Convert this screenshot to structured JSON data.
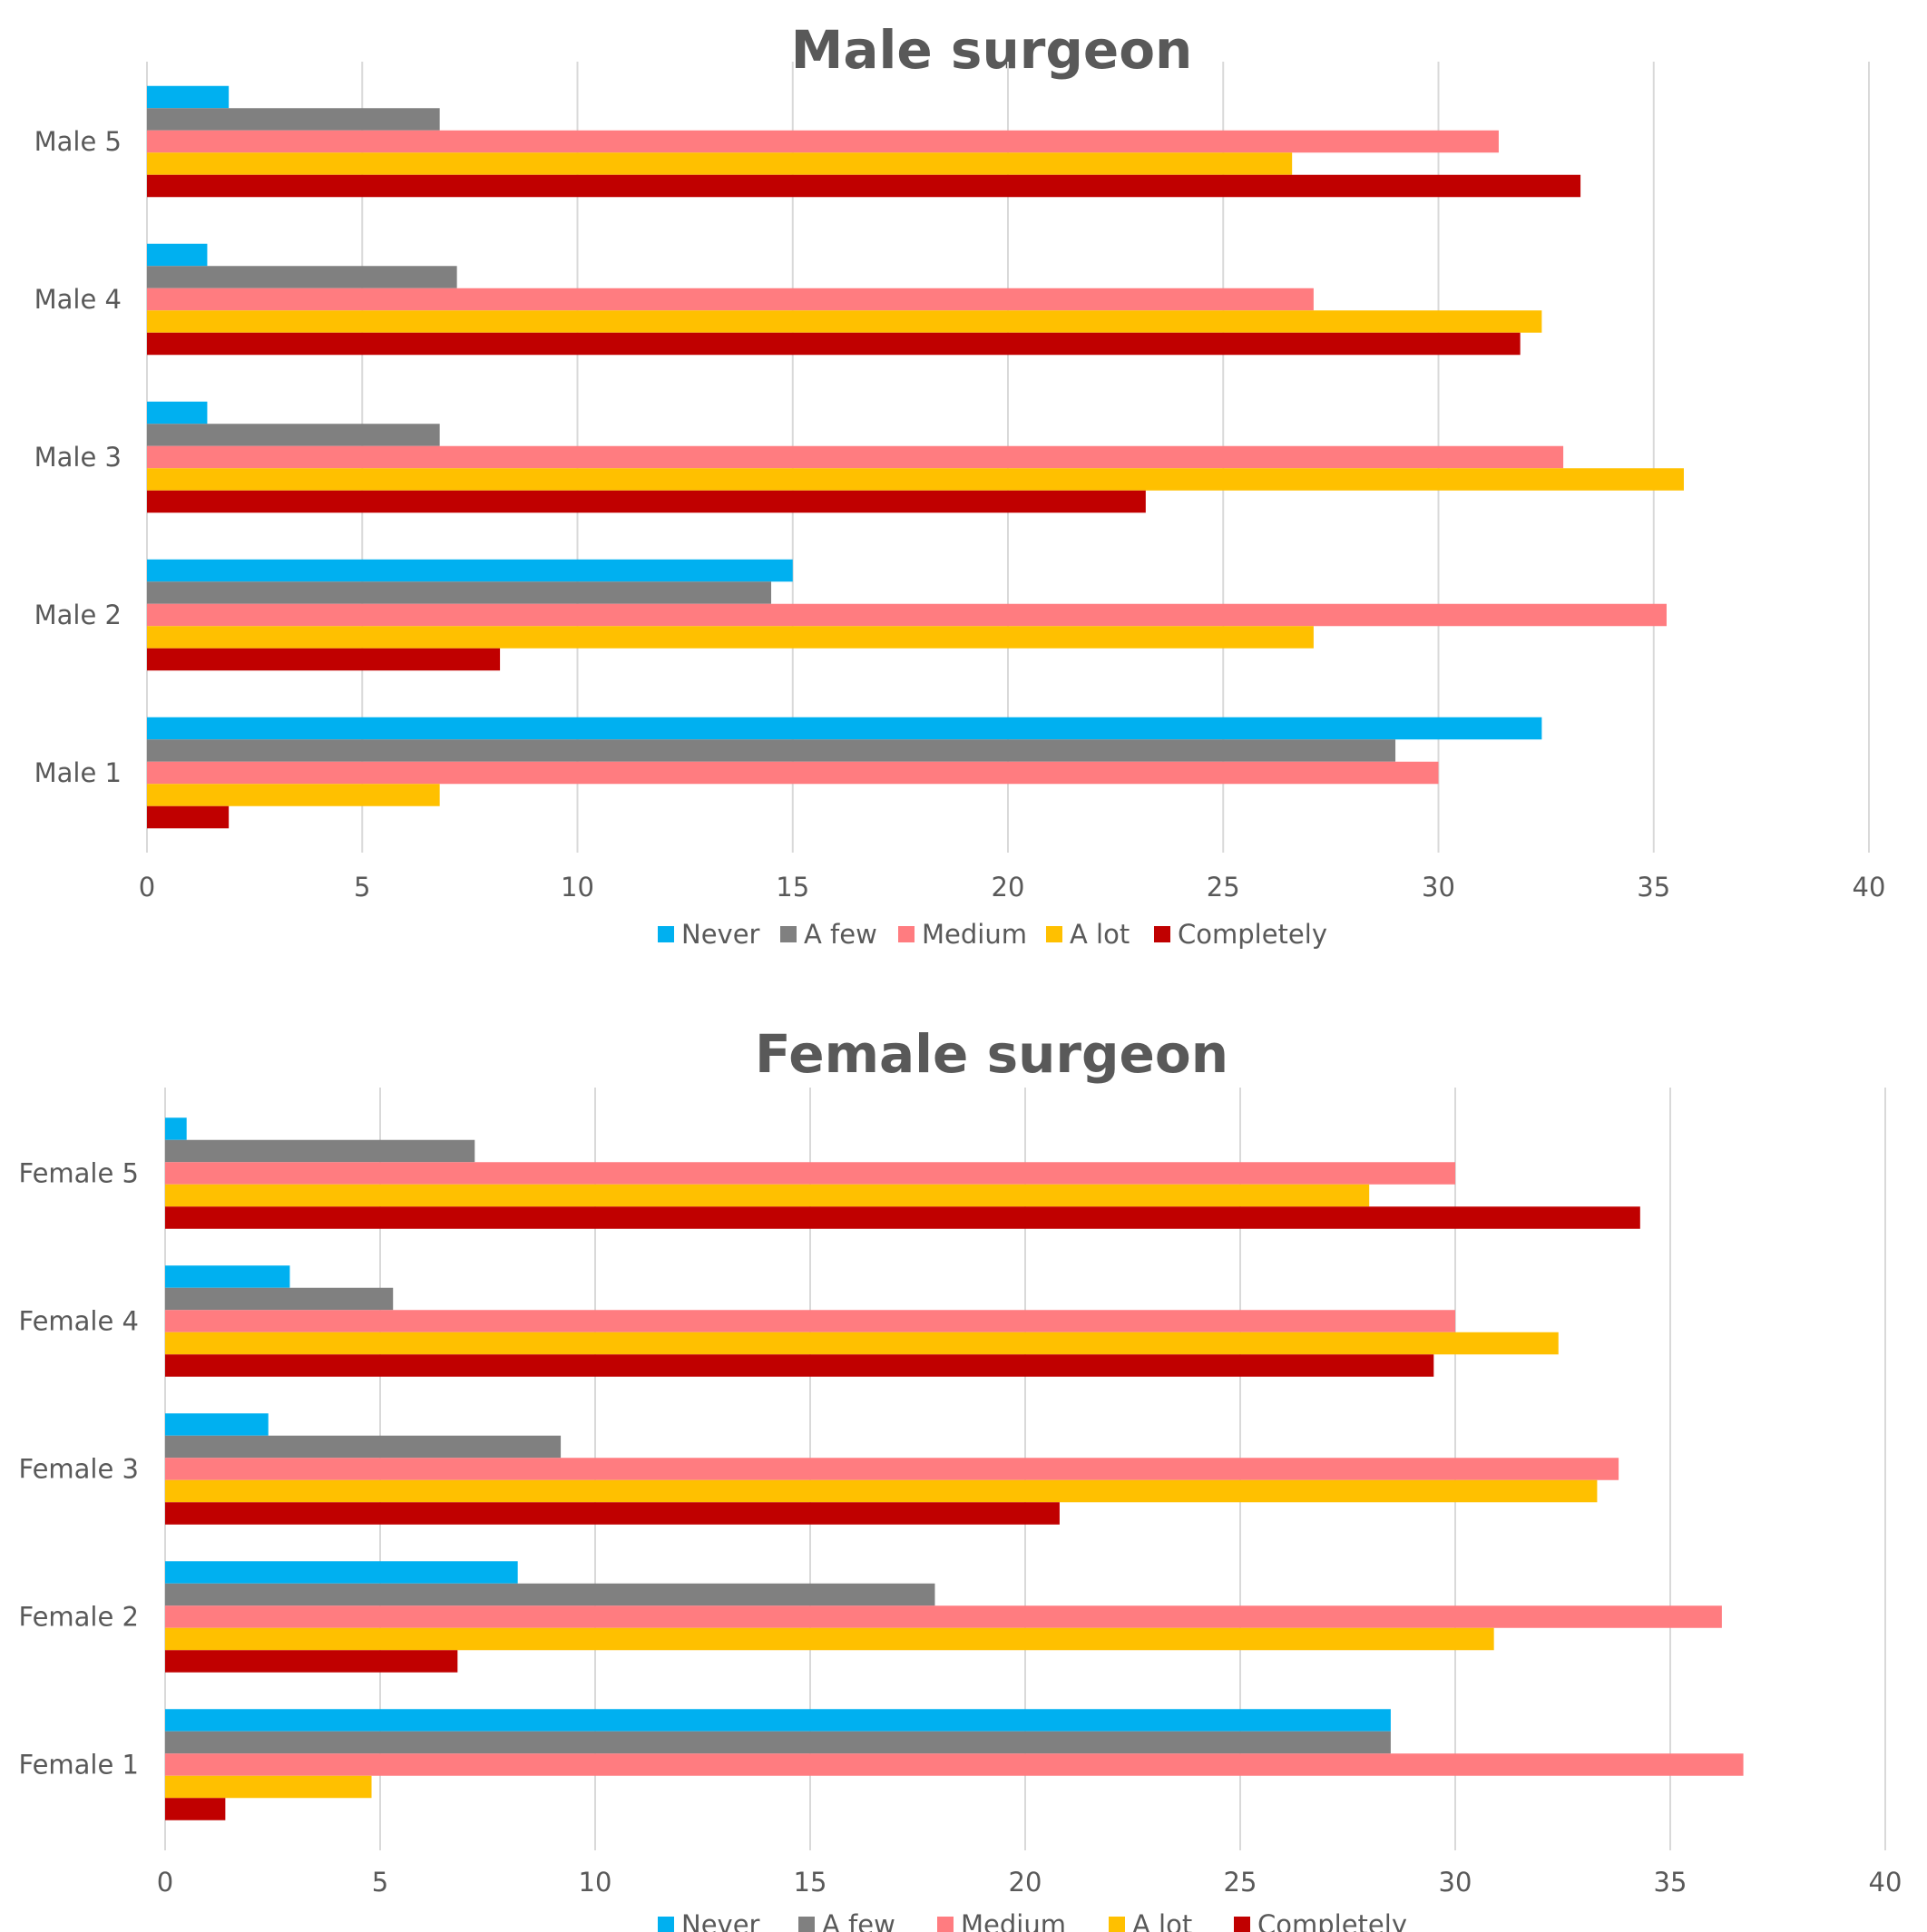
{
  "chart_data": [
    {
      "type": "bar",
      "orientation": "horizontal",
      "title": "Male surgeon",
      "categories": [
        "Male 1",
        "Male 2",
        "Male 3",
        "Male 4",
        "Male 5"
      ],
      "series": [
        {
          "name": "Never",
          "color": "#00b0f0",
          "values": [
            32.4,
            15.0,
            1.4,
            1.4,
            1.9
          ]
        },
        {
          "name": "A few",
          "color": "#808080",
          "values": [
            29.0,
            14.5,
            6.8,
            7.2,
            6.8
          ]
        },
        {
          "name": "Medium",
          "color": "#ff7c80",
          "values": [
            30.0,
            35.3,
            32.9,
            27.1,
            31.4
          ]
        },
        {
          "name": "A lot",
          "color": "#ffc000",
          "values": [
            6.8,
            27.1,
            35.7,
            32.4,
            26.6
          ]
        },
        {
          "name": "Completely",
          "color": "#c00000",
          "values": [
            1.9,
            8.2,
            23.2,
            31.9,
            33.3
          ]
        }
      ],
      "xlim": [
        0,
        40
      ],
      "xticks": [
        0,
        5,
        10,
        15,
        20,
        25,
        30,
        35,
        40
      ],
      "grid": true,
      "legend": "bottom"
    },
    {
      "type": "bar",
      "orientation": "horizontal",
      "title": "Female surgeon",
      "categories": [
        "Female 1",
        "Female 2",
        "Female 3",
        "Female 4",
        "Female 5"
      ],
      "series": [
        {
          "name": "Never",
          "color": "#00b0f0",
          "values": [
            28.5,
            8.2,
            2.4,
            2.9,
            0.5
          ]
        },
        {
          "name": "A few",
          "color": "#808080",
          "values": [
            28.5,
            17.9,
            9.2,
            5.3,
            7.2
          ]
        },
        {
          "name": "Medium",
          "color": "#ff7c80",
          "values": [
            36.7,
            36.2,
            33.8,
            30.0,
            30.0
          ]
        },
        {
          "name": "A lot",
          "color": "#ffc000",
          "values": [
            4.8,
            30.9,
            33.3,
            32.4,
            28.0
          ]
        },
        {
          "name": "Completely",
          "color": "#c00000",
          "values": [
            1.4,
            6.8,
            20.8,
            29.5,
            34.3
          ]
        }
      ],
      "xlim": [
        0,
        40
      ],
      "xticks": [
        0,
        5,
        10,
        15,
        20,
        25,
        30,
        35,
        40
      ],
      "grid": true,
      "legend": "bottom"
    }
  ]
}
